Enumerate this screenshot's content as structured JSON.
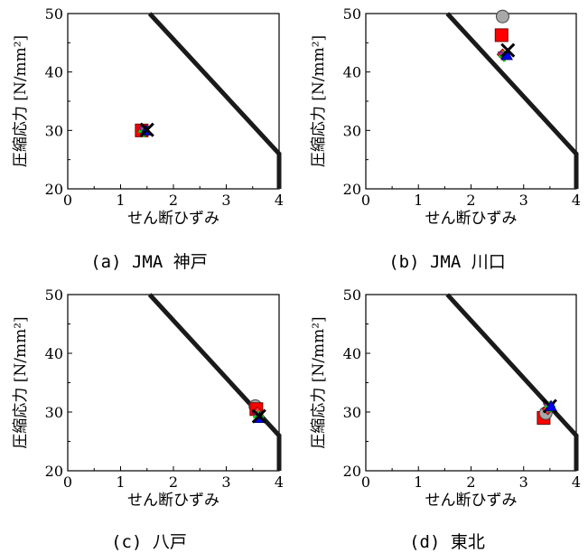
{
  "chart_data": [
    {
      "type": "scatter",
      "caption": "(a) JMA 神戸",
      "xlabel": "せん断ひずみ",
      "ylabel": "圧縮応力 [N/mm²]",
      "xlim": [
        0,
        4
      ],
      "ylim": [
        20,
        50
      ],
      "xticks": [
        "0",
        "1",
        "2",
        "3",
        "4"
      ],
      "yticks": [
        "20",
        "30",
        "40",
        "50"
      ],
      "grid": false,
      "limit_curve": {
        "x": [
          1.55,
          4.0,
          4.0
        ],
        "y": [
          50,
          26,
          20
        ]
      },
      "series": [
        {
          "marker": "circle",
          "color": "#a8a8a8",
          "x": [
            1.4
          ],
          "y": [
            30.0
          ]
        },
        {
          "marker": "square",
          "color": "#ff0000",
          "x": [
            1.4
          ],
          "y": [
            30.0
          ]
        },
        {
          "marker": "diamond",
          "color": "#ff4040",
          "x": [
            1.43
          ],
          "y": [
            30.0
          ]
        },
        {
          "marker": "triangle-down",
          "color": "#c020c0",
          "x": [
            1.45
          ],
          "y": [
            30.0
          ]
        },
        {
          "marker": "plus",
          "color": "#00cc00",
          "x": [
            1.44
          ],
          "y": [
            29.8
          ]
        },
        {
          "marker": "triangle-up",
          "color": "#0000ee",
          "x": [
            1.48
          ],
          "y": [
            30.0
          ]
        },
        {
          "marker": "x",
          "color": "#000000",
          "x": [
            1.5
          ],
          "y": [
            30.1
          ]
        }
      ]
    },
    {
      "type": "scatter",
      "caption": "(b) JMA 川口",
      "xlabel": "せん断ひずみ",
      "ylabel": "圧縮応力 [N/mm²]",
      "xlim": [
        0,
        4
      ],
      "ylim": [
        20,
        50
      ],
      "xticks": [
        "0",
        "1",
        "2",
        "3",
        "4"
      ],
      "yticks": [
        "20",
        "30",
        "40",
        "50"
      ],
      "grid": false,
      "limit_curve": {
        "x": [
          1.55,
          4.0,
          4.0
        ],
        "y": [
          50,
          26,
          20
        ]
      },
      "series": [
        {
          "marker": "circle",
          "color": "#a8a8a8",
          "x": [
            2.6
          ],
          "y": [
            49.5
          ]
        },
        {
          "marker": "square",
          "color": "#ff0000",
          "x": [
            2.58
          ],
          "y": [
            46.3
          ]
        },
        {
          "marker": "diamond",
          "color": "#ff4040",
          "x": [
            2.6
          ],
          "y": [
            43.0
          ]
        },
        {
          "marker": "triangle-down",
          "color": "#c020c0",
          "x": [
            2.62
          ],
          "y": [
            42.8
          ]
        },
        {
          "marker": "plus",
          "color": "#00cc00",
          "x": [
            2.63
          ],
          "y": [
            42.7
          ]
        },
        {
          "marker": "triangle-up",
          "color": "#0000ee",
          "x": [
            2.68
          ],
          "y": [
            42.9
          ]
        },
        {
          "marker": "x",
          "color": "#000000",
          "x": [
            2.7
          ],
          "y": [
            43.7
          ]
        }
      ]
    },
    {
      "type": "scatter",
      "caption": "(c) 八戸",
      "xlabel": "せん断ひずみ",
      "ylabel": "圧縮応力 [N/mm²]",
      "xlim": [
        0,
        4
      ],
      "ylim": [
        20,
        50
      ],
      "xticks": [
        "0",
        "1",
        "2",
        "3",
        "4"
      ],
      "yticks": [
        "20",
        "30",
        "40",
        "50"
      ],
      "grid": false,
      "limit_curve": {
        "x": [
          1.55,
          4.0,
          4.0
        ],
        "y": [
          50,
          26,
          20
        ]
      },
      "series": [
        {
          "marker": "circle",
          "color": "#a8a8a8",
          "x": [
            3.55
          ],
          "y": [
            31.0
          ]
        },
        {
          "marker": "square",
          "color": "#ff0000",
          "x": [
            3.57
          ],
          "y": [
            30.5
          ]
        },
        {
          "marker": "diamond",
          "color": "#ff4040",
          "x": [
            3.59
          ],
          "y": [
            29.9
          ]
        },
        {
          "marker": "triangle-down",
          "color": "#c020c0",
          "x": [
            3.6
          ],
          "y": [
            29.4
          ]
        },
        {
          "marker": "plus",
          "color": "#00cc00",
          "x": [
            3.61
          ],
          "y": [
            29.2
          ]
        },
        {
          "marker": "triangle-up",
          "color": "#0000ee",
          "x": [
            3.63
          ],
          "y": [
            29.0
          ]
        },
        {
          "marker": "x",
          "color": "#000000",
          "x": [
            3.62
          ],
          "y": [
            29.3
          ]
        }
      ]
    },
    {
      "type": "scatter",
      "caption": "(d) 東北",
      "xlabel": "せん断ひずみ",
      "ylabel": "圧縮応力 [N/mm²]",
      "xlim": [
        0,
        4
      ],
      "ylim": [
        20,
        50
      ],
      "xticks": [
        "0",
        "1",
        "2",
        "3",
        "4"
      ],
      "yticks": [
        "20",
        "30",
        "40",
        "50"
      ],
      "grid": false,
      "limit_curve": {
        "x": [
          1.55,
          4.0,
          4.0
        ],
        "y": [
          50,
          26,
          20
        ]
      },
      "series": [
        {
          "marker": "square",
          "color": "#ff0000",
          "x": [
            3.38
          ],
          "y": [
            29.0
          ]
        },
        {
          "marker": "circle",
          "color": "#a8a8a8",
          "x": [
            3.42
          ],
          "y": [
            29.8
          ]
        },
        {
          "marker": "diamond",
          "color": "#ff4040",
          "x": [
            3.46
          ],
          "y": [
            30.5
          ]
        },
        {
          "marker": "triangle-down",
          "color": "#c020c0",
          "x": [
            3.48
          ],
          "y": [
            30.8
          ]
        },
        {
          "marker": "plus",
          "color": "#00cc00",
          "x": [
            3.5
          ],
          "y": [
            30.9
          ]
        },
        {
          "marker": "x",
          "color": "#000000",
          "x": [
            3.5
          ],
          "y": [
            31.0
          ]
        },
        {
          "marker": "triangle-up",
          "color": "#0000ee",
          "x": [
            3.52
          ],
          "y": [
            31.0
          ]
        }
      ]
    }
  ]
}
